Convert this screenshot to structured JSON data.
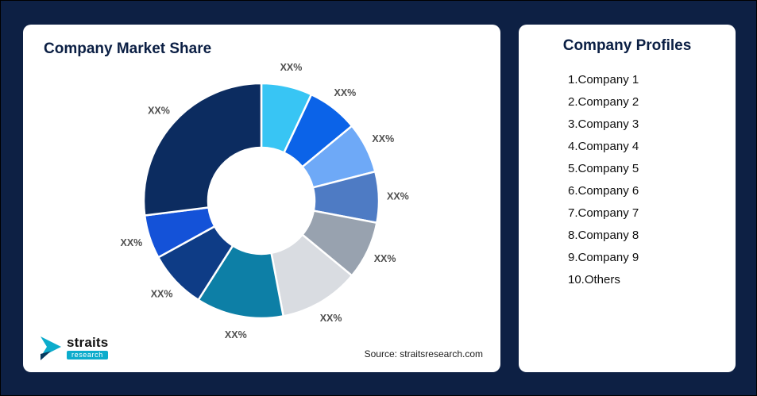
{
  "page": {
    "background_color": "#0d2044",
    "card_color": "#ffffff",
    "title_color": "#0b1f44"
  },
  "market_share_card": {
    "title": "Company Market Share",
    "source_text": "Source: straitsresearch.com",
    "logo": {
      "brand": "straits",
      "sub_brand": "research",
      "accent_color": "#0caccc"
    }
  },
  "profiles_card": {
    "title": "Company Profiles",
    "items": [
      "1.Company 1",
      "2.Company 2",
      "3.Company 3",
      "4.Company 4",
      "5.Company 5",
      "6.Company 6",
      "7.Company 7",
      "8.Company 8",
      "9.Company 9",
      "10.Others"
    ]
  },
  "chart_data": {
    "type": "pie",
    "donut": true,
    "title": "Company Market Share",
    "start_angle_deg": 0,
    "direction": "clockwise",
    "legend": "none",
    "values_masked_in_image": true,
    "segments": [
      {
        "name": "Company 1",
        "label": "XX%",
        "value_pct_est": 7,
        "color": "#38c5f4"
      },
      {
        "name": "Company 2",
        "label": "XX%",
        "value_pct_est": 7,
        "color": "#0b63e8"
      },
      {
        "name": "Company 3",
        "label": "XX%",
        "value_pct_est": 7,
        "color": "#6ea9f7"
      },
      {
        "name": "Company 4",
        "label": "XX%",
        "value_pct_est": 7,
        "color": "#4e7bc4"
      },
      {
        "name": "Company 5",
        "label": "XX%",
        "value_pct_est": 8,
        "color": "#98a2af"
      },
      {
        "name": "Company 6",
        "label": "XX%",
        "value_pct_est": 11,
        "color": "#d9dce1"
      },
      {
        "name": "Company 7",
        "label": "XX%",
        "value_pct_est": 12,
        "color": "#0d7fa6"
      },
      {
        "name": "Company 8",
        "label": "XX%",
        "value_pct_est": 8,
        "color": "#0e3c86"
      },
      {
        "name": "Company 9",
        "label": "XX%",
        "value_pct_est": 6,
        "color": "#1452d8"
      },
      {
        "name": "Others",
        "label": "XX%",
        "value_pct_est": 27,
        "color": "#0c2c60"
      }
    ]
  }
}
